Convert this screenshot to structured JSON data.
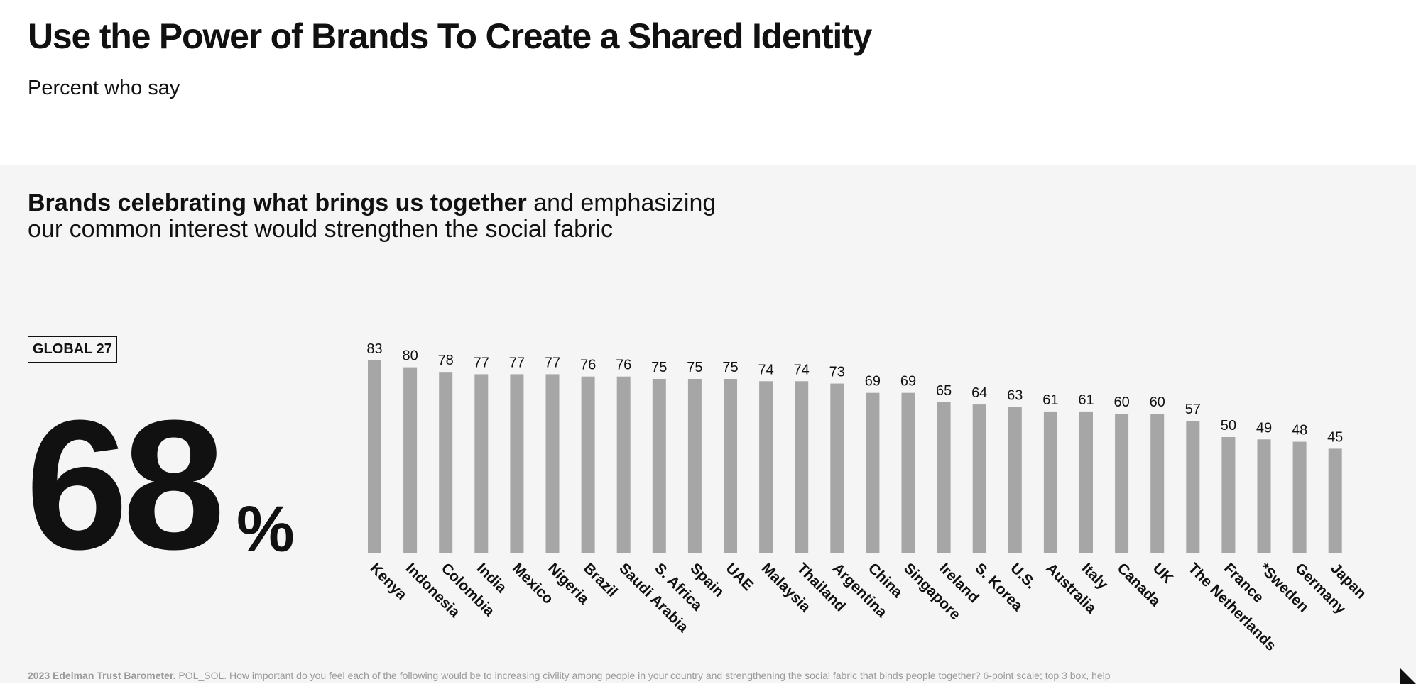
{
  "page": {
    "title": "Use the Power of Brands To Create a Shared Identity",
    "subtitle": "Percent who say"
  },
  "statement": {
    "bold_part": "Brands celebrating what brings us together",
    "rest_line1": " and emphasizing",
    "rest_line2": "our common interest would strengthen the social fabric"
  },
  "global": {
    "label": "GLOBAL 27",
    "value": "68",
    "unit": "%"
  },
  "chart_data": {
    "type": "bar",
    "title": "Brands celebrating what brings us together and emphasizing our common interest would strengthen the social fabric",
    "categories": [
      "Kenya",
      "Indonesia",
      "Colombia",
      "India",
      "Mexico",
      "Nigeria",
      "Brazil",
      "Saudi Arabia",
      "S. Africa",
      "Spain",
      "UAE",
      "Malaysia",
      "Thailand",
      "Argentina",
      "China",
      "Singapore",
      "Ireland",
      "S. Korea",
      "U.S.",
      "Australia",
      "Italy",
      "Canada",
      "UK",
      "The Netherlands",
      "France",
      "*Sweden",
      "Germany",
      "Japan"
    ],
    "values": [
      83,
      80,
      78,
      77,
      77,
      77,
      76,
      76,
      75,
      75,
      75,
      74,
      74,
      73,
      69,
      69,
      65,
      64,
      63,
      61,
      61,
      60,
      60,
      57,
      50,
      49,
      48,
      45
    ],
    "xlabel": "",
    "ylabel": "Percent who say",
    "ylim": [
      0,
      100
    ],
    "grid": false,
    "bar_color": "#a6a6a6"
  },
  "footer": {
    "source_bold": "2023 Edelman Trust Barometer.",
    "source_text": " POL_SOL. How important do you feel each of the following would be to increasing civility among people in your country and strengthening the social fabric that binds people together? 6-point scale; top 3 box, help"
  }
}
